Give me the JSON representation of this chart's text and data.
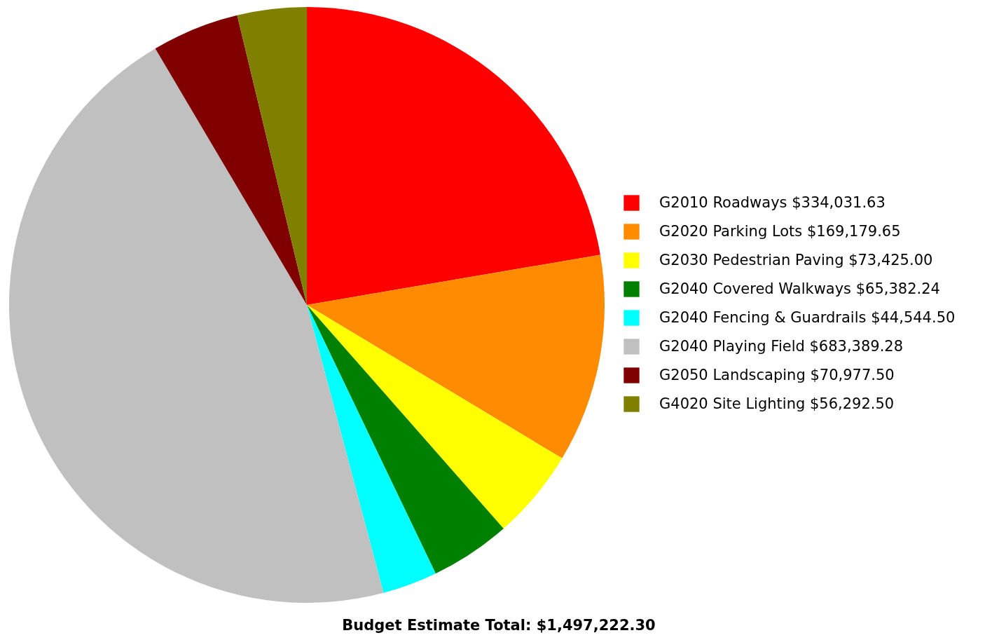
{
  "chart_data": {
    "type": "pie",
    "categories": [
      "G2010 Roadways",
      "G2020 Parking Lots",
      "G2030 Pedestrian Paving",
      "G2040 Covered Walkways",
      "G2040 Fencing & Guardrails",
      "G2040 Playing Field",
      "G2050 Landscaping",
      "G4020 Site Lighting"
    ],
    "values": [
      334031.63,
      169179.65,
      73425.0,
      65382.24,
      44544.5,
      683389.28,
      70977.5,
      56292.5
    ],
    "value_labels": [
      "$334,031.63",
      "$169,179.65",
      "$73,425.00",
      "$65,382.24",
      "$44,544.50",
      "$683,389.28",
      "$70,977.50",
      "$56,292.50"
    ],
    "colors": [
      "#ff0000",
      "#ff8c00",
      "#ffff00",
      "#008000",
      "#00ffff",
      "#c0c0c0",
      "#800000",
      "#808000"
    ],
    "legend": "right",
    "annotations": [
      "Budget Estimate Total: $1,497,222.30"
    ]
  }
}
